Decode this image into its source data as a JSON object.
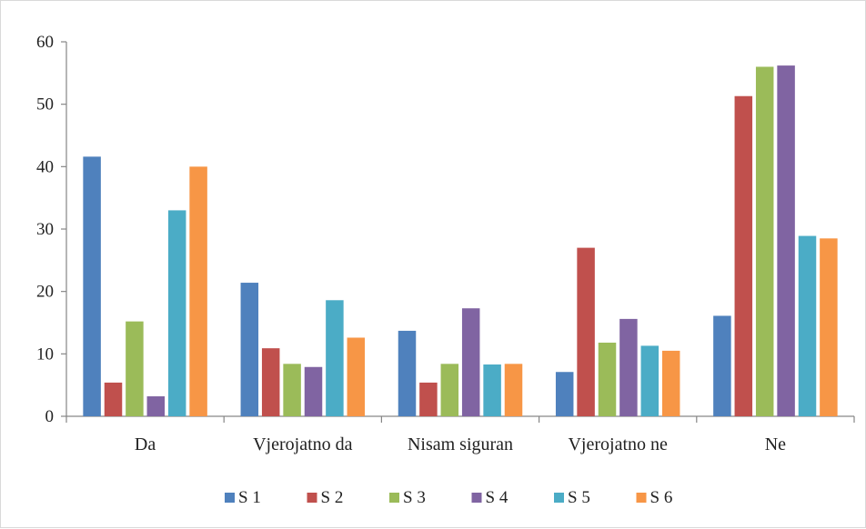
{
  "chart_data": {
    "type": "bar",
    "categories": [
      "Da",
      "Vjerojatno da",
      "Nisam siguran",
      "Vjerojatno ne",
      "Ne"
    ],
    "series": [
      {
        "name": "S 1",
        "color": "#4f81bd",
        "values": [
          41.6,
          21.4,
          13.7,
          7.1,
          16.1
        ]
      },
      {
        "name": "S 2",
        "color": "#c0504d",
        "values": [
          5.4,
          10.9,
          5.4,
          27.0,
          51.3
        ]
      },
      {
        "name": "S 3",
        "color": "#9bbb59",
        "values": [
          15.2,
          8.4,
          8.4,
          11.8,
          56.0
        ]
      },
      {
        "name": "S 4",
        "color": "#8064a2",
        "values": [
          3.2,
          7.9,
          17.3,
          15.6,
          56.2
        ]
      },
      {
        "name": "S 5",
        "color": "#4bacc6",
        "values": [
          33.0,
          18.6,
          8.3,
          11.3,
          28.9
        ]
      },
      {
        "name": "S 6",
        "color": "#f79646",
        "values": [
          40.0,
          12.6,
          8.4,
          10.5,
          28.5
        ]
      }
    ],
    "y_ticks": [
      "0",
      "10",
      "20",
      "30",
      "40",
      "50",
      "60"
    ],
    "ylim": [
      0,
      60
    ],
    "grid": false,
    "legend_position": "bottom"
  }
}
